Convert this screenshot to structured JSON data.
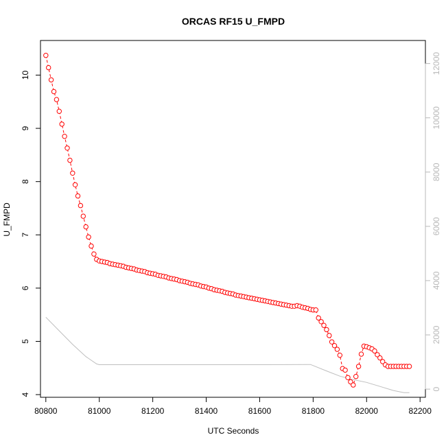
{
  "chart_data": {
    "type": "line",
    "title": "ORCAS RF15 U_FMPD",
    "xlabel": "UTC Seconds",
    "ylabel": "U_FMPD",
    "xlim": [
      80780,
      82220
    ],
    "ylim": [
      3.95,
      10.65
    ],
    "ylim_right": [
      -300,
      12850
    ],
    "x_ticks": [
      80800,
      81000,
      81200,
      81400,
      81600,
      81800,
      82000,
      82200
    ],
    "x_tick_labels": [
      "80800",
      "81000",
      "81200",
      "81400",
      "81600",
      "81800",
      "82000",
      "82200"
    ],
    "y_ticks": [
      4,
      5,
      6,
      7,
      8,
      9,
      10
    ],
    "y_tick_labels": [
      "4",
      "5",
      "6",
      "7",
      "8",
      "9",
      "10"
    ],
    "y_right_ticks": [
      0,
      2000,
      4000,
      6000,
      8000,
      10000,
      12000
    ],
    "y_right_tick_labels": [
      "0",
      "2000",
      "4000",
      "6000",
      "8000",
      "10000",
      "12000"
    ],
    "grid": false,
    "colors": {
      "primary_series": "#ff0000",
      "secondary_series": "#bebebe",
      "right_axis": "#b8b8b8",
      "axis": "#000000"
    },
    "series": [
      {
        "axis": "left",
        "style": "points-dashed",
        "x": [
          80800,
          80810,
          80820,
          80830,
          80840,
          80850,
          80860,
          80870,
          80880,
          80890,
          80900,
          80910,
          80920,
          80930,
          80940,
          80950,
          80960,
          80970,
          80980,
          80990,
          81000,
          81010,
          81020,
          81030,
          81040,
          81050,
          81060,
          81070,
          81080,
          81090,
          81100,
          81110,
          81120,
          81130,
          81140,
          81150,
          81160,
          81170,
          81180,
          81190,
          81200,
          81210,
          81220,
          81230,
          81240,
          81250,
          81260,
          81270,
          81280,
          81290,
          81300,
          81310,
          81320,
          81330,
          81340,
          81350,
          81360,
          81370,
          81380,
          81390,
          81400,
          81410,
          81420,
          81430,
          81440,
          81450,
          81460,
          81470,
          81480,
          81490,
          81500,
          81510,
          81520,
          81530,
          81540,
          81550,
          81560,
          81570,
          81580,
          81590,
          81600,
          81610,
          81620,
          81630,
          81640,
          81650,
          81660,
          81670,
          81680,
          81690,
          81700,
          81710,
          81720,
          81730,
          81740,
          81750,
          81760,
          81770,
          81780,
          81790,
          81800,
          81810,
          81820,
          81830,
          81840,
          81850,
          81860,
          81870,
          81880,
          81890,
          81900,
          81910,
          81920,
          81930,
          81940,
          81950,
          81960,
          81970,
          81980,
          81990,
          82000,
          82010,
          82020,
          82030,
          82040,
          82050,
          82060,
          82070,
          82080,
          82090,
          82100,
          82110,
          82120,
          82130,
          82140,
          82150,
          82160
        ],
        "values": [
          10.37,
          10.14,
          9.91,
          9.69,
          9.54,
          9.32,
          9.08,
          8.85,
          8.63,
          8.4,
          8.16,
          7.94,
          7.73,
          7.55,
          7.35,
          7.15,
          6.96,
          6.79,
          6.64,
          6.54,
          6.51,
          6.5,
          6.49,
          6.48,
          6.46,
          6.45,
          6.44,
          6.43,
          6.42,
          6.41,
          6.39,
          6.38,
          6.37,
          6.36,
          6.34,
          6.33,
          6.32,
          6.31,
          6.29,
          6.28,
          6.27,
          6.26,
          6.24,
          6.23,
          6.22,
          6.21,
          6.19,
          6.18,
          6.17,
          6.16,
          6.14,
          6.13,
          6.12,
          6.11,
          6.09,
          6.08,
          6.07,
          6.06,
          6.04,
          6.03,
          6.02,
          6.0,
          5.99,
          5.97,
          5.96,
          5.95,
          5.94,
          5.92,
          5.91,
          5.9,
          5.89,
          5.87,
          5.86,
          5.85,
          5.84,
          5.83,
          5.82,
          5.81,
          5.8,
          5.79,
          5.78,
          5.77,
          5.76,
          5.75,
          5.74,
          5.73,
          5.72,
          5.71,
          5.7,
          5.69,
          5.68,
          5.67,
          5.66,
          5.66,
          5.67,
          5.66,
          5.64,
          5.63,
          5.62,
          5.6,
          5.59,
          5.59,
          5.44,
          5.37,
          5.3,
          5.22,
          5.11,
          4.99,
          4.92,
          4.85,
          4.74,
          4.49,
          4.46,
          4.32,
          4.24,
          4.18,
          4.34,
          4.53,
          4.76,
          4.91,
          4.9,
          4.88,
          4.86,
          4.82,
          4.75,
          4.69,
          4.62,
          4.56,
          4.53,
          4.53,
          4.53,
          4.53,
          4.53,
          4.53,
          4.53,
          4.53,
          4.53
        ]
      },
      {
        "axis": "right",
        "style": "line",
        "x": [
          80800,
          80850,
          80900,
          80950,
          80990,
          81000,
          81100,
          81200,
          81400,
          81600,
          81790,
          81850,
          81900,
          81950,
          82000,
          82050,
          82100,
          82140,
          82160
        ],
        "values": [
          2650,
          2150,
          1650,
          1200,
          930,
          900,
          900,
          900,
          900,
          900,
          910,
          670,
          480,
          350,
          250,
          100,
          -50,
          -130,
          -130
        ]
      }
    ]
  }
}
